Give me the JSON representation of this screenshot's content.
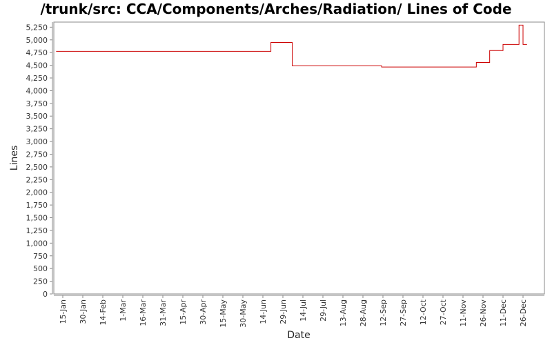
{
  "chart_data": {
    "type": "line",
    "title": "/trunk/src: CCA/Components/Arches/Radiation/ Lines of Code",
    "xlabel": "Date",
    "ylabel": "Lines",
    "ylim": [
      0,
      5350
    ],
    "yticks": [
      0,
      250,
      500,
      750,
      1000,
      1250,
      1500,
      1750,
      2000,
      2250,
      2500,
      2750,
      3000,
      3250,
      3500,
      3750,
      4000,
      4250,
      4500,
      4750,
      5000,
      5250
    ],
    "yticklabels": [
      "0",
      "250",
      "500",
      "750",
      "1,000",
      "1,250",
      "1,500",
      "1,750",
      "2,000",
      "2,250",
      "2,500",
      "2,750",
      "3,000",
      "3,250",
      "3,500",
      "3,750",
      "4,000",
      "4,250",
      "4,500",
      "4,750",
      "5,000",
      "5,250"
    ],
    "xticklabels": [
      "15-Jan",
      "30-Jan",
      "14-Feb",
      "1-Mar",
      "16-Mar",
      "31-Mar",
      "15-Apr",
      "30-Apr",
      "15-May",
      "30-May",
      "14-Jun",
      "29-Jun",
      "14-Jul",
      "29-Jul",
      "13-Aug",
      "28-Aug",
      "12-Sep",
      "27-Sep",
      "12-Oct",
      "27-Oct",
      "11-Nov",
      "26-Nov",
      "11-Dec",
      "26-Dec"
    ],
    "grid": false,
    "series": [
      {
        "color": "#cc0000",
        "step": true,
        "points": [
          {
            "x": "10-Jan",
            "y": 4775
          },
          {
            "x": "20-Jun",
            "y": 4950
          },
          {
            "x": "6-Jul",
            "y": 4490
          },
          {
            "x": "11-Sep",
            "y": 4465
          },
          {
            "x": "21-Nov",
            "y": 4555
          },
          {
            "x": "1-Dec",
            "y": 4790
          },
          {
            "x": "11-Dec",
            "y": 4910
          },
          {
            "x": "23-Dec",
            "y": 5290
          },
          {
            "x": "26-Dec",
            "y": 4910
          },
          {
            "x": "29-Dec",
            "y": 4910
          }
        ]
      }
    ]
  }
}
